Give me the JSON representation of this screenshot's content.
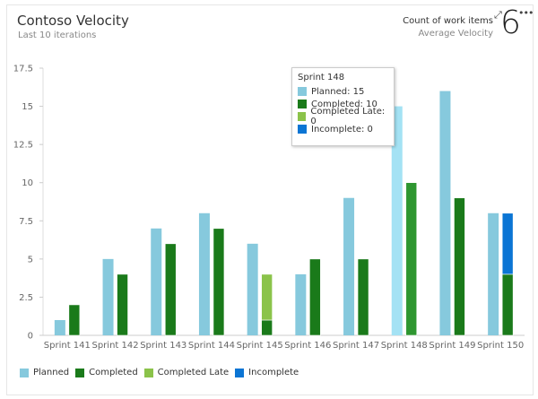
{
  "header": {
    "title": "Contoso Velocity",
    "subtitle": "Last 10 iterations",
    "metric_label": "Count of work items",
    "metric_sub": "Average Velocity",
    "metric_value": "6",
    "expand_icon": "expand-arrows-icon",
    "more_icon": "more-ellipsis-icon"
  },
  "tooltip": {
    "title": "Sprint 148",
    "rows": [
      "Planned: 15",
      "Completed: 10",
      "Completed Late: 0",
      "Incomplete: 0"
    ]
  },
  "colors": {
    "planned": "#86c9dd",
    "planned_highlight": "#a4e2f4",
    "completed": "#1a7a1a",
    "completed_highlight": "#2e9630",
    "completed_late": "#8bc34a",
    "incomplete": "#0b75d4"
  },
  "chart_data": {
    "type": "bar",
    "title": "Contoso Velocity",
    "xlabel": "",
    "ylabel": "",
    "ylim": [
      0,
      17.5
    ],
    "yticks": [
      "0",
      "2.5",
      "5",
      "7.5",
      "10",
      "12.5",
      "15",
      "17.5"
    ],
    "ytick_values": [
      0,
      2.5,
      5,
      7.5,
      10,
      12.5,
      15,
      17.5
    ],
    "grid": false,
    "legend_position": "bottom-left",
    "categories": [
      "Sprint 141",
      "Sprint 142",
      "Sprint 143",
      "Sprint 144",
      "Sprint 145",
      "Sprint 146",
      "Sprint 147",
      "Sprint 148",
      "Sprint 149",
      "Sprint 150"
    ],
    "highlighted": "Sprint 148",
    "series": [
      {
        "name": "Planned",
        "values": [
          1,
          5,
          7,
          8,
          6,
          4,
          9,
          15,
          16,
          8
        ]
      },
      {
        "name": "Completed",
        "values": [
          2,
          4,
          6,
          7,
          1,
          5,
          5,
          10,
          9,
          4
        ]
      },
      {
        "name": "Completed Late",
        "values": [
          0,
          0,
          0,
          0,
          3,
          0,
          0,
          0,
          0,
          0
        ]
      },
      {
        "name": "Incomplete",
        "values": [
          0,
          0,
          0,
          0,
          0,
          0,
          0,
          0,
          0,
          4
        ]
      }
    ]
  },
  "legend": [
    "Planned",
    "Completed",
    "Completed Late",
    "Incomplete"
  ]
}
